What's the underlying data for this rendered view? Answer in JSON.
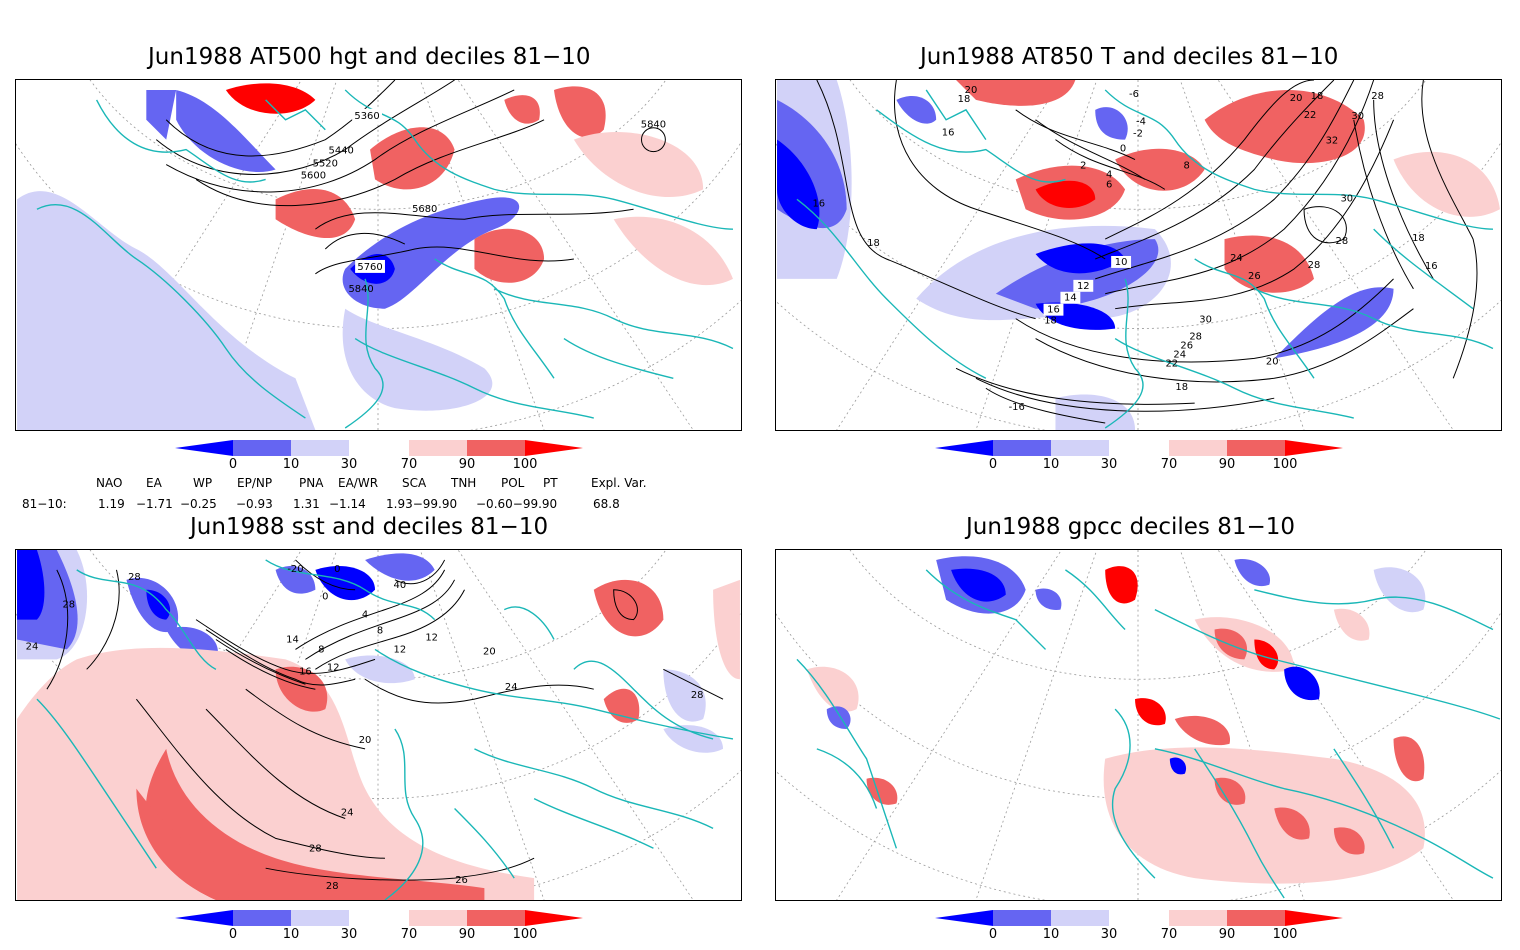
{
  "panels": [
    {
      "title": "Jun1988 AT500 hgt and deciles 81−10",
      "contour_labels": [
        "5360",
        "5440",
        "5520",
        "5600",
        "5680",
        "5760",
        "5840",
        "5840"
      ]
    },
    {
      "title": "Jun1988 AT850 T and deciles 81−10",
      "contour_labels": [
        "20",
        "18",
        "16",
        "16",
        "18",
        "10",
        "12",
        "14",
        "16",
        "18",
        "24",
        "26",
        "28",
        "30",
        "28",
        "18",
        "16",
        "20",
        "22",
        "24",
        "26",
        "28",
        "30",
        "32",
        "18",
        "-6",
        "-4",
        "-2",
        "0",
        "2",
        "4",
        "6",
        "8",
        "-16",
        "20",
        "18",
        "28",
        "22",
        "30"
      ]
    },
    {
      "title": "Jun1988 sst and deciles 81−10",
      "contour_labels": [
        "24",
        "28",
        "28",
        "16",
        "14",
        "12",
        "8",
        "0",
        "4",
        "8",
        "12",
        "12",
        "20",
        "24",
        "24",
        "28",
        "28",
        "26",
        "20",
        "-20",
        "0",
        "40",
        "28"
      ]
    },
    {
      "title": "Jun1988 gpcc deciles 81−10",
      "contour_labels": []
    }
  ],
  "colorbar": {
    "labels": [
      "0",
      "10",
      "30",
      "70",
      "90",
      "100"
    ],
    "colors": [
      "#0000ff",
      "#6565f2",
      "#d2d2f8",
      "#ffffff",
      "#fbd0d0",
      "#f06262",
      "#ff0000"
    ]
  },
  "indices": {
    "headers": [
      "NAO",
      "EA",
      "WP",
      "EP/NP",
      "PNA",
      "EA/WR",
      "SCA",
      "TNH",
      "POL",
      "PT",
      "Expl. Var."
    ],
    "row_label": "81−10:",
    "values": [
      "1.19",
      "−1.71",
      "−0.25",
      "−0.93",
      "1.31",
      "−1.14",
      "1.93−99.90",
      "−0.60−99.90",
      "68.8"
    ]
  }
}
